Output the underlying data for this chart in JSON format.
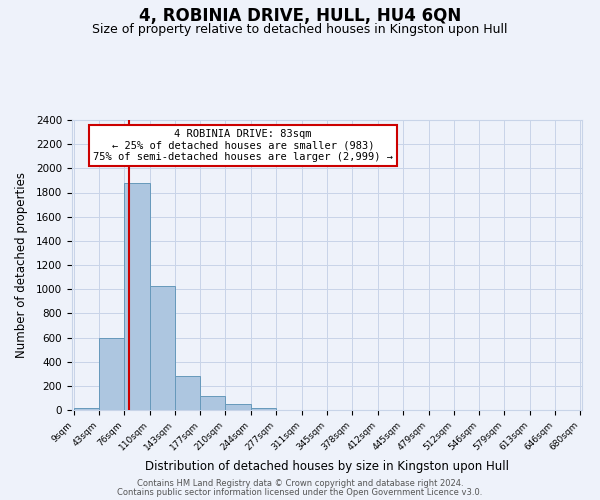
{
  "title": "4, ROBINIA DRIVE, HULL, HU4 6QN",
  "subtitle": "Size of property relative to detached houses in Kingston upon Hull",
  "xlabel": "Distribution of detached houses by size in Kingston upon Hull",
  "ylabel": "Number of detached properties",
  "bin_edges": [
    9,
    43,
    76,
    110,
    143,
    177,
    210,
    244,
    277,
    311,
    345,
    378,
    412,
    445,
    479,
    512,
    546,
    579,
    613,
    646,
    680
  ],
  "bin_counts": [
    20,
    600,
    1880,
    1030,
    280,
    115,
    50,
    20,
    0,
    0,
    0,
    0,
    0,
    0,
    0,
    0,
    0,
    0,
    0,
    0
  ],
  "bar_color": "#adc6e0",
  "bar_edge_color": "#6699bb",
  "vline_x": 83,
  "vline_color": "#cc0000",
  "ylim": [
    0,
    2400
  ],
  "yticks": [
    0,
    200,
    400,
    600,
    800,
    1000,
    1200,
    1400,
    1600,
    1800,
    2000,
    2200,
    2400
  ],
  "annotation_title": "4 ROBINIA DRIVE: 83sqm",
  "annotation_line1": "← 25% of detached houses are smaller (983)",
  "annotation_line2": "75% of semi-detached houses are larger (2,999) →",
  "annotation_box_color": "#ffffff",
  "annotation_box_edge_color": "#cc0000",
  "footer_line1": "Contains HM Land Registry data © Crown copyright and database right 2024.",
  "footer_line2": "Contains public sector information licensed under the Open Government Licence v3.0.",
  "background_color": "#eef2fa",
  "grid_color": "#c8d4e8",
  "title_fontsize": 12,
  "subtitle_fontsize": 9
}
